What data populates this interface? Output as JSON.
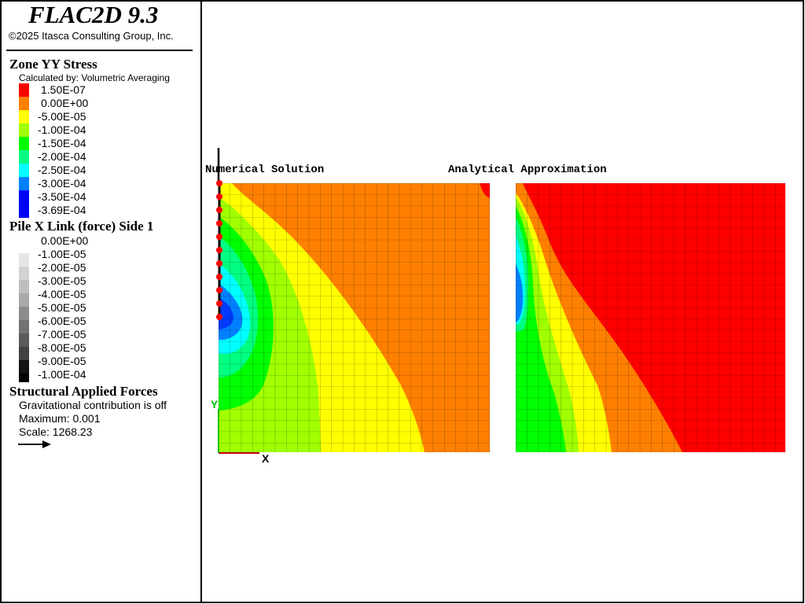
{
  "app": {
    "title": "FLAC2D 9.3",
    "copyright": "©2025 Itasca Consulting Group, Inc."
  },
  "zone_stress": {
    "title": "Zone YY Stress",
    "subtitle": "Calculated by: Volumetric Averaging",
    "entries": [
      {
        "label": "1.50E-07",
        "color": "#ff0000"
      },
      {
        "label": "0.00E+00",
        "color": "#ff8000"
      },
      {
        "label": "-5.00E-05",
        "color": "#ffff00"
      },
      {
        "label": "-1.00E-04",
        "color": "#a0ff00"
      },
      {
        "label": "-1.50E-04",
        "color": "#00ff00"
      },
      {
        "label": "-2.00E-04",
        "color": "#00ff80"
      },
      {
        "label": "-2.50E-04",
        "color": "#00ffff"
      },
      {
        "label": "-3.00E-04",
        "color": "#0080ff"
      },
      {
        "label": "-3.50E-04",
        "color": "#0000ff"
      },
      {
        "label": "-3.69E-04",
        "color": ""
      }
    ]
  },
  "pile_link": {
    "title": "Pile X Link (force) Side 1",
    "entries": [
      {
        "label": "0.00E+00",
        "color": "#e6e6e6"
      },
      {
        "label": "-1.00E-05",
        "color": "#d2d2d2"
      },
      {
        "label": "-2.00E-05",
        "color": "#bebebe"
      },
      {
        "label": "-3.00E-05",
        "color": "#aaaaaa"
      },
      {
        "label": "-4.00E-05",
        "color": "#8c8c8c"
      },
      {
        "label": "-5.00E-05",
        "color": "#737373"
      },
      {
        "label": "-6.00E-05",
        "color": "#5a5a5a"
      },
      {
        "label": "-7.00E-05",
        "color": "#414141"
      },
      {
        "label": "-8.00E-05",
        "color": "#282828"
      },
      {
        "label": "-9.00E-05",
        "color": "#141414"
      },
      {
        "label": "-1.00E-04",
        "color": "#000000"
      }
    ]
  },
  "applied_forces": {
    "title": "Structural Applied Forces",
    "gravity_note": "Gravitational contribution is off",
    "maximum": "Maximum: 0.001",
    "scale": "Scale: 1268.23"
  },
  "plots": {
    "left_label": "Numerical Solution",
    "right_label": "Analytical Approximation",
    "axis_x": "X",
    "axis_y": "Y"
  },
  "colors": {
    "red": "#ff0000",
    "orange": "#ff8000",
    "yellow": "#ffff00",
    "yellowgreen": "#a0ff00",
    "green": "#00ff00",
    "springgreen": "#00ff80",
    "cyan": "#00ffff",
    "azure": "#0080ff",
    "blue": "#0000ff",
    "pile_node": "#ff0000",
    "axis_x_color": "#c00000",
    "axis_y_color": "#00c000"
  }
}
